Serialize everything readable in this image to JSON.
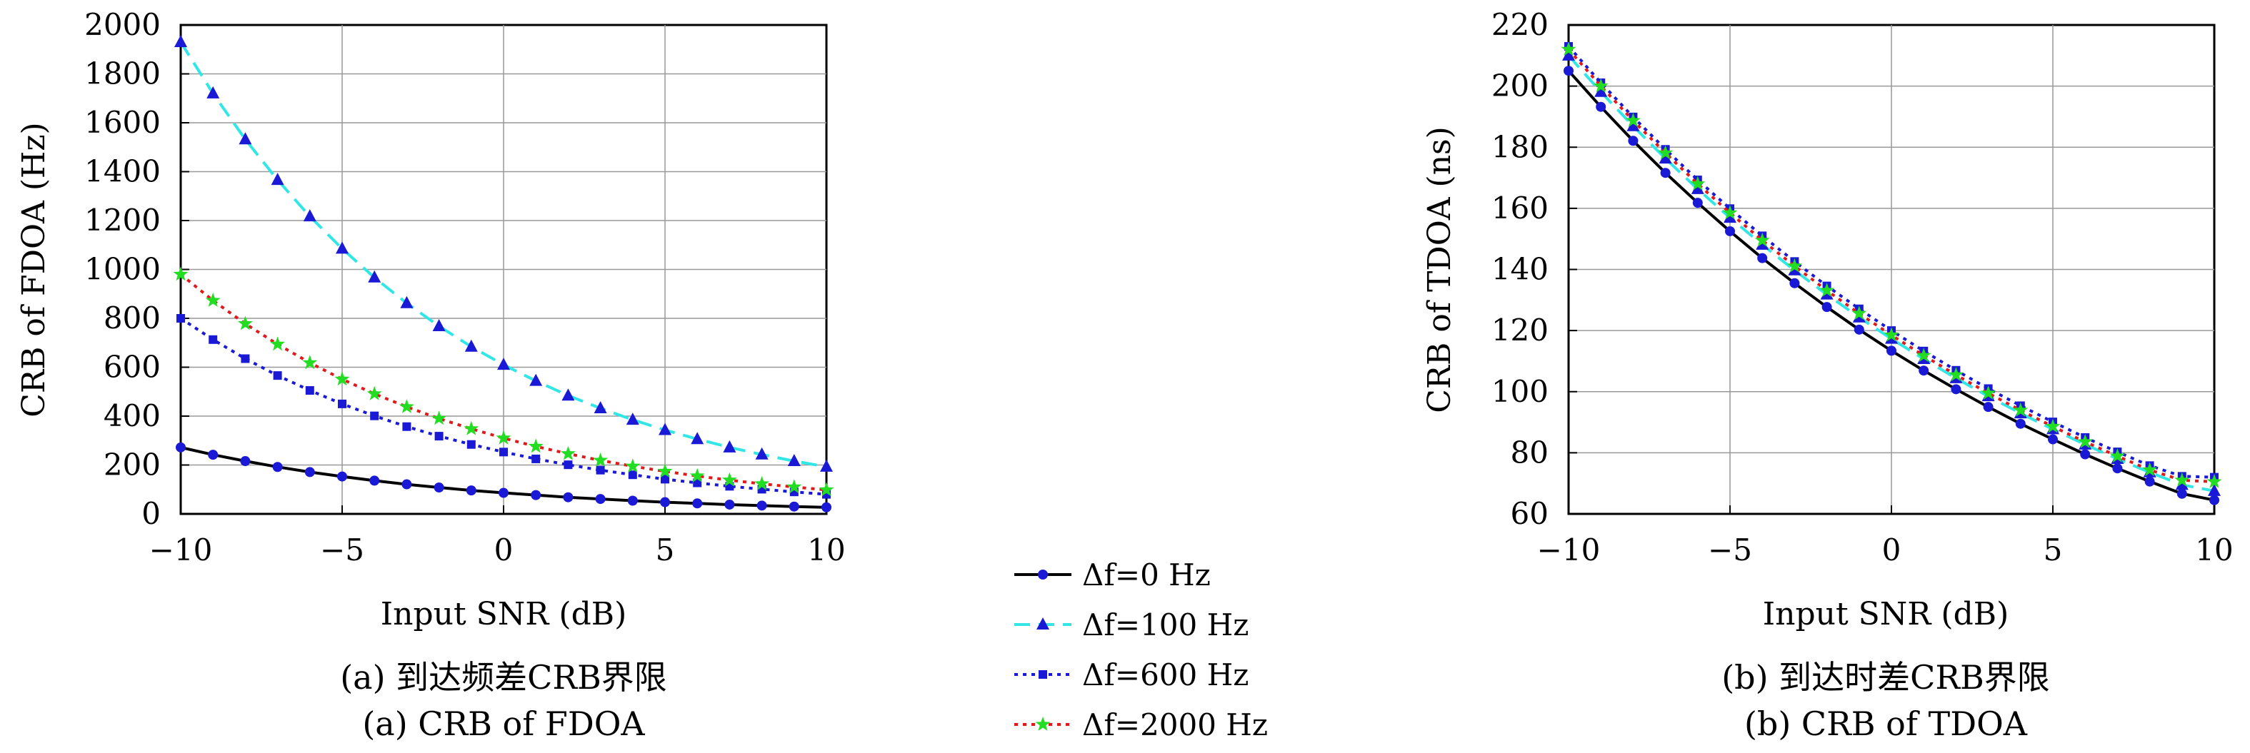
{
  "chart_data": [
    {
      "type": "line",
      "caption_cn": "(a) 到达频差CRB界限",
      "caption_en": "(a) CRB of FDOA",
      "xlabel": "Input SNR (dB)",
      "ylabel": "CRB of FDOA (Hz)",
      "xlim": [
        -10,
        10
      ],
      "ylim": [
        0,
        2000
      ],
      "xticks": [
        "−10",
        "−5",
        "0",
        "5",
        "10"
      ],
      "yticks": [
        "0",
        "200",
        "400",
        "600",
        "800",
        "1000",
        "1200",
        "1400",
        "1600",
        "1800",
        "2000"
      ],
      "grid": true,
      "x": [
        -10,
        -9,
        -8,
        -7,
        -6,
        -5,
        -4,
        -3,
        -2,
        -1,
        0,
        1,
        2,
        3,
        4,
        5,
        6,
        7,
        8,
        9,
        10
      ],
      "series": [
        {
          "name": "Δf=0 Hz",
          "values": [
            272,
            242,
            216,
            192,
            171,
            153,
            136,
            121,
            108,
            96,
            86,
            77,
            68,
            61,
            54,
            48,
            43,
            38,
            34,
            30,
            27
          ]
        },
        {
          "name": "Δf=100 Hz",
          "values": [
            1930,
            1720,
            1532,
            1366,
            1217,
            1085,
            967,
            862,
            768,
            684,
            610,
            544,
            484,
            432,
            385,
            343,
            306,
            272,
            243,
            216,
            193
          ]
        },
        {
          "name": "Δf=600 Hz",
          "values": [
            800,
            713,
            635,
            566,
            505,
            450,
            401,
            357,
            318,
            284,
            253,
            225,
            201,
            179,
            160,
            142,
            127,
            113,
            101,
            90,
            80
          ]
        },
        {
          "name": "Δf=2000 Hz",
          "values": [
            980,
            873,
            778,
            694,
            618,
            551,
            491,
            438,
            390,
            348,
            310,
            276,
            246,
            219,
            195,
            174,
            155,
            138,
            123,
            110,
            98
          ]
        }
      ]
    },
    {
      "type": "line",
      "caption_cn": "(b) 到达时差CRB界限",
      "caption_en": "(b) CRB of TDOA",
      "xlabel": "Input SNR (dB)",
      "ylabel": "CRB of TDOA (ns)",
      "xlim": [
        -10,
        10
      ],
      "ylim": [
        60,
        220
      ],
      "xticks": [
        "−10",
        "−5",
        "0",
        "5",
        "10"
      ],
      "yticks": [
        "60",
        "80",
        "100",
        "120",
        "140",
        "160",
        "180",
        "200",
        "220"
      ],
      "grid": true,
      "x": [
        -10,
        -9,
        -8,
        -7,
        -6,
        -5,
        -4,
        -3,
        -2,
        -1,
        0,
        1,
        2,
        3,
        4,
        5,
        6,
        7,
        8,
        9,
        10
      ],
      "series": [
        {
          "name": "Δf=0 Hz",
          "values": [
            205,
            193.2,
            182.1,
            171.6,
            161.8,
            152.5,
            143.7,
            135.5,
            127.7,
            120.3,
            113.4,
            106.9,
            100.8,
            95.0,
            89.5,
            84.4,
            79.5,
            74.9,
            70.6,
            66.6,
            64.5
          ]
        },
        {
          "name": "Δf=100 Hz",
          "values": [
            210,
            198.1,
            186.9,
            176.3,
            166.3,
            156.9,
            148.1,
            139.7,
            131.8,
            124.3,
            117.3,
            110.7,
            104.4,
            98.5,
            92.9,
            87.7,
            82.7,
            78.0,
            73.6,
            69.5,
            67.5
          ]
        },
        {
          "name": "Δf=600 Hz",
          "values": [
            213,
            201.1,
            189.9,
            179.3,
            169.3,
            159.9,
            151.0,
            142.6,
            134.6,
            127.1,
            120.0,
            113.3,
            107.0,
            101.0,
            95.4,
            90.1,
            85.0,
            80.3,
            75.8,
            72.3,
            72.0
          ]
        },
        {
          "name": "Δf=2000 Hz",
          "values": [
            212,
            200.0,
            188.7,
            178.1,
            168.0,
            158.5,
            149.5,
            141.1,
            133.1,
            125.6,
            118.5,
            111.8,
            105.5,
            99.5,
            93.9,
            88.6,
            83.6,
            78.9,
            74.4,
            71.0,
            70.5
          ]
        }
      ]
    }
  ],
  "legend": [
    {
      "label": "Δf=0 Hz",
      "color": "#000000",
      "marker": "circle",
      "marker_color": "#1a1ad6",
      "dash": "solid"
    },
    {
      "label": "Δf=100 Hz",
      "color": "#33e6e6",
      "marker": "triangle",
      "marker_color": "#1a1ad6",
      "dash": "dashed"
    },
    {
      "label": "Δf=600 Hz",
      "color": "#1a1ad6",
      "marker": "square",
      "marker_color": "#1a1ad6",
      "dash": "dotted"
    },
    {
      "label": "Δf=2000 Hz",
      "color": "#e01a1a",
      "marker": "star",
      "marker_color": "#22dd22",
      "dash": "dotted"
    }
  ]
}
